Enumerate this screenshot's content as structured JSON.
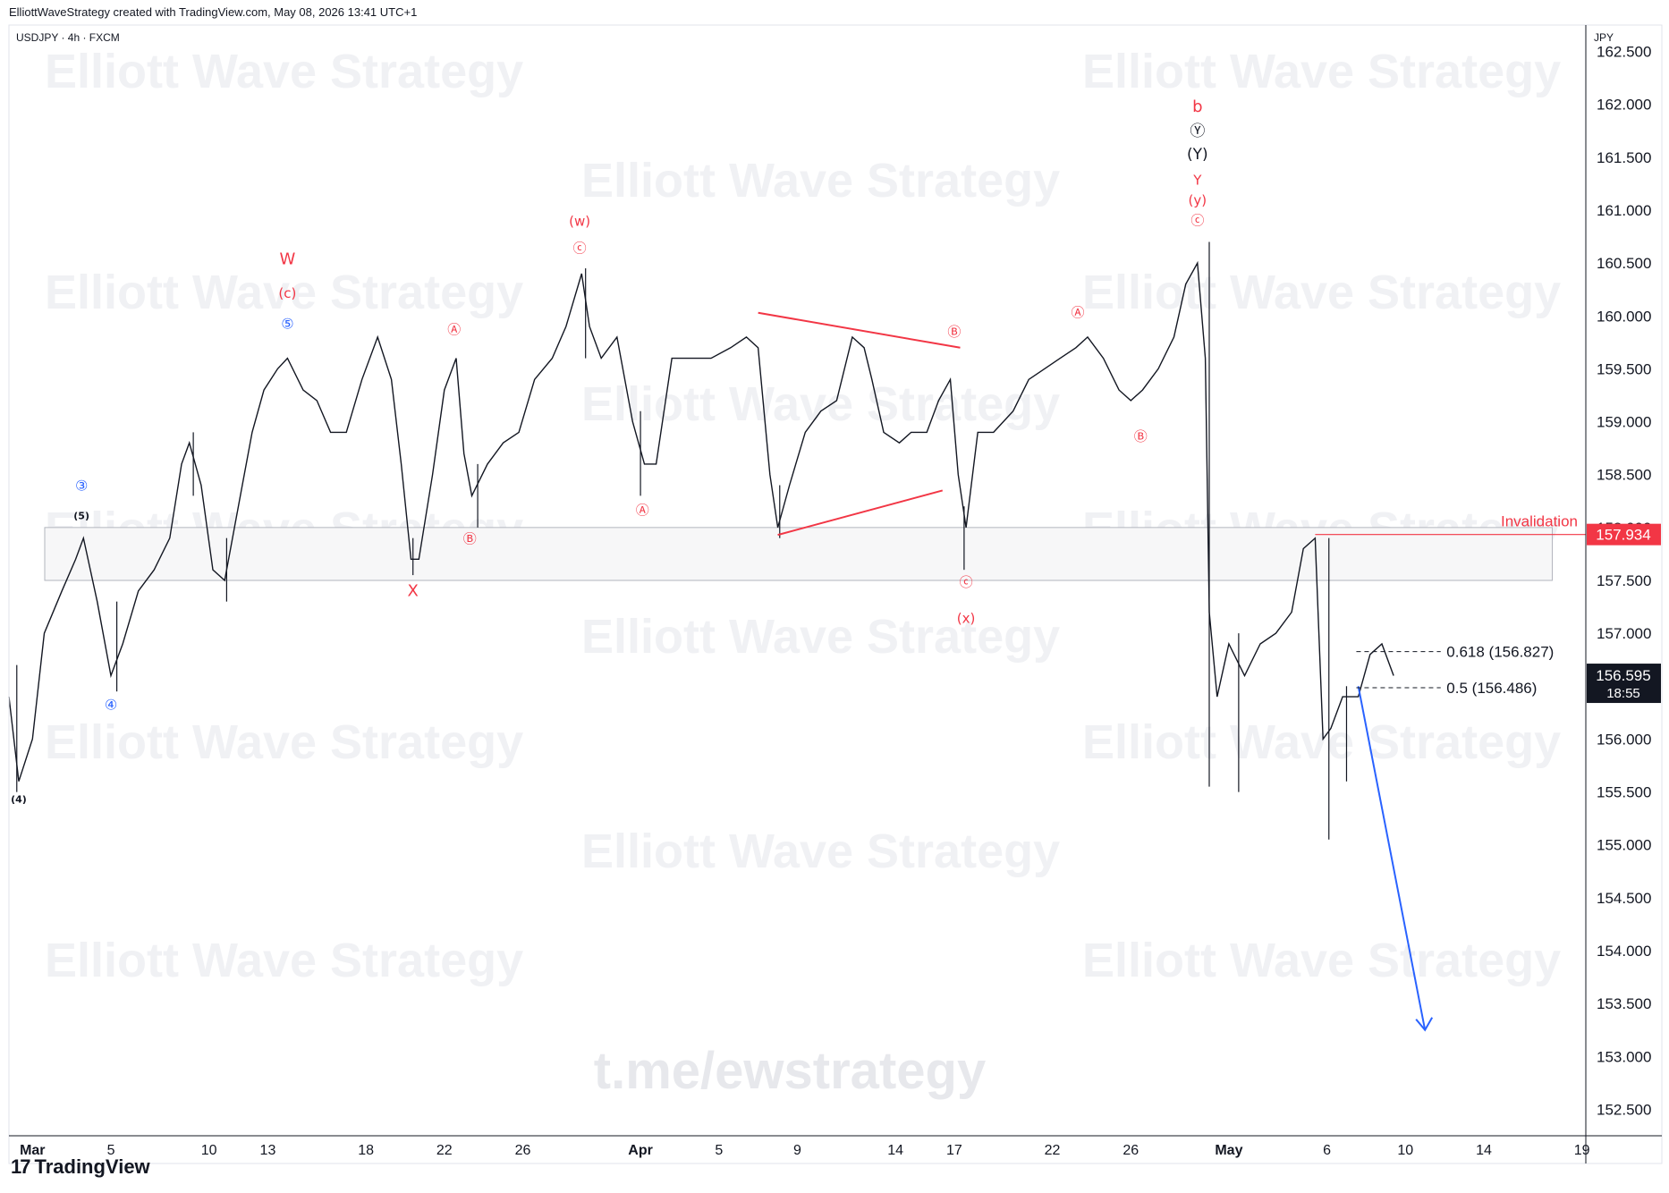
{
  "header": {
    "credit": "ElliottWaveStrategy created with TradingView.com, May 08, 2026 13:41 UTC+1"
  },
  "symbol": "USDJPY · 4h · FXCM",
  "currency": "JPY",
  "watermark": "Elliott Wave Strategy",
  "footer_watermark": "t.me/ewstrategy",
  "brand": "TradingView",
  "colors": {
    "up": "#131722",
    "down": "#131722",
    "wave_red": "#f23645",
    "wave_blue": "#2962ff",
    "projection": "#2962ff",
    "zone": "#9598a1"
  },
  "invalidation": {
    "label": "Invalidation",
    "value": 157.934
  },
  "current_price": {
    "value": "156.595",
    "countdown": "18:55"
  },
  "fib_levels": [
    {
      "label": "0.618 (156.827)",
      "value": 156.827
    },
    {
      "label": "0.5 (156.486)",
      "value": 156.486
    }
  ],
  "chart_data": {
    "type": "line",
    "symbol": "USDJPY",
    "timeframe": "4h",
    "ylim": [
      152.25,
      162.75
    ],
    "y_ticks": [
      152.5,
      153.0,
      153.5,
      154.0,
      154.5,
      155.0,
      155.5,
      156.0,
      156.5,
      157.0,
      157.5,
      158.0,
      158.5,
      159.0,
      159.5,
      160.0,
      160.5,
      161.0,
      161.5,
      162.0,
      162.5
    ],
    "x_ticks": [
      {
        "label": "Mar",
        "day": 1
      },
      {
        "label": "5",
        "day": 5
      },
      {
        "label": "10",
        "day": 10
      },
      {
        "label": "13",
        "day": 13
      },
      {
        "label": "18",
        "day": 18
      },
      {
        "label": "22",
        "day": 22
      },
      {
        "label": "26",
        "day": 26
      },
      {
        "label": "Apr",
        "day": 32
      },
      {
        "label": "5",
        "day": 36
      },
      {
        "label": "9",
        "day": 40
      },
      {
        "label": "14",
        "day": 45
      },
      {
        "label": "17",
        "day": 48
      },
      {
        "label": "22",
        "day": 53
      },
      {
        "label": "26",
        "day": 57
      },
      {
        "label": "May",
        "day": 62
      },
      {
        "label": "6",
        "day": 67
      },
      {
        "label": "10",
        "day": 71
      },
      {
        "label": "14",
        "day": 75
      },
      {
        "label": "19",
        "day": 80
      }
    ],
    "xlim": [
      -0.2,
      80.2
    ],
    "price_path": [
      {
        "day": -0.2,
        "price": 156.4
      },
      {
        "day": 0.3,
        "price": 155.6
      },
      {
        "day": 1.0,
        "price": 156.0
      },
      {
        "day": 1.6,
        "price": 157.0
      },
      {
        "day": 2.5,
        "price": 157.4
      },
      {
        "day": 3.2,
        "price": 157.7
      },
      {
        "day": 3.6,
        "price": 157.9
      },
      {
        "day": 4.3,
        "price": 157.3
      },
      {
        "day": 5.0,
        "price": 156.6
      },
      {
        "day": 5.6,
        "price": 156.9
      },
      {
        "day": 6.4,
        "price": 157.4
      },
      {
        "day": 7.2,
        "price": 157.6
      },
      {
        "day": 8.0,
        "price": 157.9
      },
      {
        "day": 8.6,
        "price": 158.6
      },
      {
        "day": 9.0,
        "price": 158.8
      },
      {
        "day": 9.6,
        "price": 158.4
      },
      {
        "day": 10.2,
        "price": 157.6
      },
      {
        "day": 10.8,
        "price": 157.5
      },
      {
        "day": 11.6,
        "price": 158.3
      },
      {
        "day": 12.2,
        "price": 158.9
      },
      {
        "day": 12.8,
        "price": 159.3
      },
      {
        "day": 13.5,
        "price": 159.5
      },
      {
        "day": 14.0,
        "price": 159.6
      },
      {
        "day": 14.8,
        "price": 159.3
      },
      {
        "day": 15.5,
        "price": 159.2
      },
      {
        "day": 16.2,
        "price": 158.9
      },
      {
        "day": 17.0,
        "price": 158.9
      },
      {
        "day": 17.8,
        "price": 159.4
      },
      {
        "day": 18.6,
        "price": 159.8
      },
      {
        "day": 19.3,
        "price": 159.4
      },
      {
        "day": 19.8,
        "price": 158.6
      },
      {
        "day": 20.3,
        "price": 157.7
      },
      {
        "day": 20.7,
        "price": 157.7
      },
      {
        "day": 21.4,
        "price": 158.5
      },
      {
        "day": 22.0,
        "price": 159.3
      },
      {
        "day": 22.6,
        "price": 159.6
      },
      {
        "day": 23.0,
        "price": 158.7
      },
      {
        "day": 23.4,
        "price": 158.3
      },
      {
        "day": 24.2,
        "price": 158.6
      },
      {
        "day": 25.0,
        "price": 158.8
      },
      {
        "day": 25.8,
        "price": 158.9
      },
      {
        "day": 26.6,
        "price": 159.4
      },
      {
        "day": 27.5,
        "price": 159.6
      },
      {
        "day": 28.2,
        "price": 159.9
      },
      {
        "day": 29.0,
        "price": 160.4
      },
      {
        "day": 29.4,
        "price": 159.9
      },
      {
        "day": 30.0,
        "price": 159.6
      },
      {
        "day": 30.8,
        "price": 159.8
      },
      {
        "day": 31.6,
        "price": 159.0
      },
      {
        "day": 32.2,
        "price": 158.6
      },
      {
        "day": 32.8,
        "price": 158.6
      },
      {
        "day": 33.6,
        "price": 159.6
      },
      {
        "day": 34.6,
        "price": 159.6
      },
      {
        "day": 35.6,
        "price": 159.6
      },
      {
        "day": 36.6,
        "price": 159.7
      },
      {
        "day": 37.4,
        "price": 159.8
      },
      {
        "day": 38.0,
        "price": 159.7
      },
      {
        "day": 38.6,
        "price": 158.5
      },
      {
        "day": 39.0,
        "price": 158.0
      },
      {
        "day": 39.6,
        "price": 158.4
      },
      {
        "day": 40.4,
        "price": 158.9
      },
      {
        "day": 41.2,
        "price": 159.1
      },
      {
        "day": 42.0,
        "price": 159.2
      },
      {
        "day": 42.8,
        "price": 159.8
      },
      {
        "day": 43.4,
        "price": 159.7
      },
      {
        "day": 43.8,
        "price": 159.4
      },
      {
        "day": 44.4,
        "price": 158.9
      },
      {
        "day": 45.2,
        "price": 158.8
      },
      {
        "day": 45.8,
        "price": 158.9
      },
      {
        "day": 46.6,
        "price": 158.9
      },
      {
        "day": 47.2,
        "price": 159.2
      },
      {
        "day": 47.8,
        "price": 159.4
      },
      {
        "day": 48.2,
        "price": 158.5
      },
      {
        "day": 48.6,
        "price": 158.0
      },
      {
        "day": 49.2,
        "price": 158.9
      },
      {
        "day": 50.0,
        "price": 158.9
      },
      {
        "day": 51.0,
        "price": 159.1
      },
      {
        "day": 51.8,
        "price": 159.4
      },
      {
        "day": 52.6,
        "price": 159.5
      },
      {
        "day": 53.4,
        "price": 159.6
      },
      {
        "day": 54.2,
        "price": 159.7
      },
      {
        "day": 54.8,
        "price": 159.8
      },
      {
        "day": 55.6,
        "price": 159.6
      },
      {
        "day": 56.4,
        "price": 159.3
      },
      {
        "day": 57.0,
        "price": 159.2
      },
      {
        "day": 57.6,
        "price": 159.3
      },
      {
        "day": 58.4,
        "price": 159.5
      },
      {
        "day": 59.2,
        "price": 159.8
      },
      {
        "day": 59.8,
        "price": 160.3
      },
      {
        "day": 60.4,
        "price": 160.5
      },
      {
        "day": 60.8,
        "price": 159.6
      },
      {
        "day": 61.0,
        "price": 157.2
      },
      {
        "day": 61.4,
        "price": 156.4
      },
      {
        "day": 62.0,
        "price": 156.9
      },
      {
        "day": 62.8,
        "price": 156.6
      },
      {
        "day": 63.6,
        "price": 156.9
      },
      {
        "day": 64.4,
        "price": 157.0
      },
      {
        "day": 65.2,
        "price": 157.2
      },
      {
        "day": 65.8,
        "price": 157.8
      },
      {
        "day": 66.4,
        "price": 157.9
      },
      {
        "day": 66.8,
        "price": 156.0
      },
      {
        "day": 67.2,
        "price": 156.1
      },
      {
        "day": 67.8,
        "price": 156.4
      },
      {
        "day": 68.6,
        "price": 156.4
      },
      {
        "day": 69.2,
        "price": 156.8
      },
      {
        "day": 69.8,
        "price": 156.9
      },
      {
        "day": 70.4,
        "price": 156.6
      }
    ],
    "spikes": [
      {
        "day": 0.2,
        "low": 155.5,
        "high": 156.7
      },
      {
        "day": 5.3,
        "low": 156.45,
        "high": 157.3
      },
      {
        "day": 9.2,
        "low": 158.3,
        "high": 158.9
      },
      {
        "day": 10.9,
        "low": 157.3,
        "high": 157.9
      },
      {
        "day": 20.4,
        "low": 157.55,
        "high": 157.9
      },
      {
        "day": 23.7,
        "low": 158.0,
        "high": 158.6
      },
      {
        "day": 29.2,
        "low": 159.6,
        "high": 160.45
      },
      {
        "day": 32.0,
        "low": 158.3,
        "high": 159.1
      },
      {
        "day": 39.1,
        "low": 157.9,
        "high": 158.4
      },
      {
        "day": 48.5,
        "low": 157.6,
        "high": 158.2
      },
      {
        "day": 61.0,
        "low": 155.55,
        "high": 160.7
      },
      {
        "day": 62.5,
        "low": 155.5,
        "high": 157.0
      },
      {
        "day": 67.1,
        "low": 155.05,
        "high": 157.9
      },
      {
        "day": 68.0,
        "low": 155.6,
        "high": 156.5
      }
    ]
  },
  "annotations": {
    "zone": {
      "from_day": -0.2,
      "to_day": 68.0,
      "top": 158.0,
      "bottom": 157.5
    },
    "wave_labels": [
      {
        "text": "(4)",
        "day": 0.3,
        "price": 155.4,
        "style": "black-small"
      },
      {
        "text": "③",
        "day": 3.5,
        "price": 158.35,
        "style": "blue"
      },
      {
        "text": "(5)",
        "day": 3.5,
        "price": 158.08,
        "style": "black-small"
      },
      {
        "text": "④",
        "day": 5.0,
        "price": 156.28,
        "style": "blue"
      },
      {
        "text": "W",
        "day": 14.0,
        "price": 160.49,
        "style": "red-big"
      },
      {
        "text": "(c)",
        "day": 14.0,
        "price": 160.17,
        "style": "red"
      },
      {
        "text": "⑤",
        "day": 14.0,
        "price": 159.88,
        "style": "blue"
      },
      {
        "text": "X",
        "day": 20.4,
        "price": 157.35,
        "style": "red-big"
      },
      {
        "text": "Ⓐ",
        "day": 22.5,
        "price": 159.83,
        "style": "red"
      },
      {
        "text": "Ⓑ",
        "day": 23.3,
        "price": 157.85,
        "style": "red"
      },
      {
        "text": "(w)",
        "day": 28.9,
        "price": 160.85,
        "style": "red"
      },
      {
        "text": "ⓒ",
        "day": 28.9,
        "price": 160.6,
        "style": "red"
      },
      {
        "text": "Ⓐ",
        "day": 32.1,
        "price": 158.12,
        "style": "red"
      },
      {
        "text": "Ⓑ",
        "day": 48.0,
        "price": 159.81,
        "style": "red"
      },
      {
        "text": "ⓒ",
        "day": 48.6,
        "price": 157.44,
        "style": "red"
      },
      {
        "text": "(x)",
        "day": 48.6,
        "price": 157.1,
        "style": "red"
      },
      {
        "text": "Ⓐ",
        "day": 54.3,
        "price": 159.99,
        "style": "red"
      },
      {
        "text": "Ⓑ",
        "day": 57.5,
        "price": 158.82,
        "style": "red"
      },
      {
        "text": "b",
        "day": 60.4,
        "price": 161.93,
        "style": "red-big"
      },
      {
        "text": "Ⓨ",
        "day": 60.4,
        "price": 161.7,
        "style": "black"
      },
      {
        "text": "(Y)",
        "day": 60.4,
        "price": 161.48,
        "style": "black"
      },
      {
        "text": "Y",
        "day": 60.4,
        "price": 161.24,
        "style": "red"
      },
      {
        "text": "(y)",
        "day": 60.4,
        "price": 161.05,
        "style": "red"
      },
      {
        "text": "ⓒ",
        "day": 60.4,
        "price": 160.86,
        "style": "red"
      }
    ],
    "triangle": [
      {
        "from": {
          "day": 38.0,
          "price": 160.03
        },
        "to": {
          "day": 48.3,
          "price": 159.7
        }
      },
      {
        "from": {
          "day": 39.0,
          "price": 157.93
        },
        "to": {
          "day": 47.4,
          "price": 158.35
        }
      }
    ],
    "projection": {
      "from": {
        "day": 68.6,
        "price": 156.5
      },
      "to": {
        "day": 72.0,
        "price": 153.25
      }
    }
  }
}
